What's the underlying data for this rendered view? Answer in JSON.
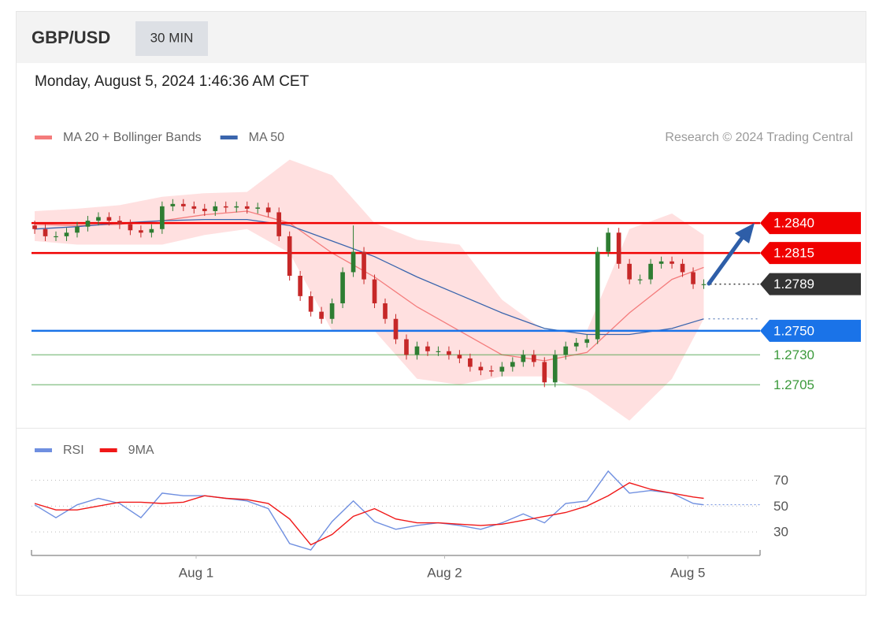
{
  "header": {
    "symbol": "GBP/USD",
    "interval": "30 MIN",
    "timestamp": "Monday, August 5, 2024 1:46:36 AM CET",
    "attribution": "Research © 2024 Trading Central"
  },
  "chart_data": [
    {
      "type": "candlestick",
      "up_color": "#2e7d32",
      "down_color": "#c62828",
      "xlim": [
        -0.3,
        68.3
      ],
      "ylim": [
        1.2671,
        1.2898
      ],
      "x": [
        0,
        1,
        2,
        3,
        4,
        5,
        6,
        7,
        8,
        9,
        10,
        11,
        12,
        13,
        14,
        15,
        16,
        17,
        18,
        19,
        20,
        21,
        22,
        23,
        24,
        25,
        26,
        27,
        28,
        29,
        30,
        31,
        32,
        33,
        34,
        35,
        36,
        37,
        38,
        39,
        40,
        41,
        42,
        43,
        44,
        45,
        46,
        47,
        48,
        49,
        50,
        51,
        52,
        53,
        54,
        55,
        56,
        57,
        58,
        59,
        60,
        61,
        62,
        63
      ],
      "open": [
        1.2838,
        1.2835,
        1.2829,
        1.2829,
        1.2832,
        1.2837,
        1.2842,
        1.2845,
        1.2842,
        1.2839,
        1.2834,
        1.2832,
        1.2835,
        1.2854,
        1.2856,
        1.2854,
        1.2852,
        1.285,
        1.2854,
        1.2853,
        1.2854,
        1.2852,
        1.2853,
        1.2849,
        1.2829,
        1.2796,
        1.2779,
        1.2766,
        1.276,
        1.2773,
        1.2799,
        1.2816,
        1.2793,
        1.2773,
        1.276,
        1.2743,
        1.273,
        1.2737,
        1.2733,
        1.2733,
        1.273,
        1.2727,
        1.272,
        1.2717,
        1.2716,
        1.272,
        1.2724,
        1.273,
        1.2724,
        1.2707,
        1.273,
        1.2737,
        1.274,
        1.2743,
        1.2816,
        1.2832,
        1.2806,
        1.2793,
        1.2793,
        1.2806,
        1.2808,
        1.2806,
        1.2799,
        1.2789
      ],
      "high": [
        1.2842,
        1.2839,
        1.2833,
        1.2836,
        1.2841,
        1.2846,
        1.2849,
        1.2849,
        1.2846,
        1.2843,
        1.2838,
        1.2839,
        1.2858,
        1.286,
        1.286,
        1.2858,
        1.2856,
        1.2858,
        1.2858,
        1.2858,
        1.2858,
        1.2857,
        1.2857,
        1.2853,
        1.2833,
        1.28,
        1.2783,
        1.277,
        1.2777,
        1.2803,
        1.2838,
        1.282,
        1.2797,
        1.2777,
        1.2764,
        1.2747,
        1.2741,
        1.2741,
        1.2737,
        1.2737,
        1.2734,
        1.2731,
        1.2724,
        1.2721,
        1.2724,
        1.2728,
        1.2734,
        1.2734,
        1.2728,
        1.2734,
        1.2741,
        1.2744,
        1.2747,
        1.282,
        1.2836,
        1.2836,
        1.281,
        1.2797,
        1.281,
        1.2812,
        1.2812,
        1.281,
        1.2803,
        1.2793
      ],
      "low": [
        1.2831,
        1.2825,
        1.2825,
        1.2825,
        1.2828,
        1.2833,
        1.2838,
        1.2838,
        1.2835,
        1.283,
        1.2828,
        1.2828,
        1.2831,
        1.285,
        1.285,
        1.2848,
        1.2846,
        1.2846,
        1.2849,
        1.2849,
        1.2848,
        1.2848,
        1.2845,
        1.2825,
        1.2792,
        1.2775,
        1.2762,
        1.2756,
        1.2756,
        1.2769,
        1.2795,
        1.2789,
        1.2769,
        1.2756,
        1.2739,
        1.2726,
        1.2726,
        1.2729,
        1.2729,
        1.2726,
        1.2723,
        1.2716,
        1.2713,
        1.2712,
        1.2712,
        1.2716,
        1.272,
        1.272,
        1.2703,
        1.2703,
        1.2726,
        1.2733,
        1.2736,
        1.2739,
        1.2812,
        1.2802,
        1.2789,
        1.2789,
        1.2789,
        1.2802,
        1.2802,
        1.2795,
        1.2785,
        1.2785
      ],
      "close": [
        1.2835,
        1.2829,
        1.2829,
        1.2832,
        1.2837,
        1.2842,
        1.2845,
        1.2842,
        1.2839,
        1.2834,
        1.2832,
        1.2835,
        1.2854,
        1.2856,
        1.2854,
        1.2852,
        1.285,
        1.2854,
        1.2853,
        1.2854,
        1.2852,
        1.2853,
        1.2849,
        1.2829,
        1.2796,
        1.2779,
        1.2766,
        1.276,
        1.2773,
        1.2799,
        1.2816,
        1.2793,
        1.2773,
        1.276,
        1.2743,
        1.273,
        1.2737,
        1.2733,
        1.2733,
        1.273,
        1.2727,
        1.272,
        1.2717,
        1.2716,
        1.272,
        1.2724,
        1.273,
        1.2724,
        1.2707,
        1.273,
        1.2737,
        1.274,
        1.2743,
        1.2816,
        1.2832,
        1.2806,
        1.2793,
        1.2793,
        1.2806,
        1.2808,
        1.2806,
        1.2799,
        1.2789,
        1.2789
      ],
      "series": [
        {
          "name": "MA 20 + Bollinger Bands",
          "color": "#f47c7c",
          "band_color": "#ffd6d6",
          "x": [
            0,
            4,
            8,
            12,
            16,
            20,
            24,
            28,
            32,
            36,
            40,
            44,
            48,
            52,
            56,
            60,
            63
          ],
          "values": [
            1.2839,
            1.2838,
            1.2839,
            1.2842,
            1.2847,
            1.285,
            1.284,
            1.2815,
            1.2795,
            1.277,
            1.275,
            1.273,
            1.2725,
            1.2732,
            1.2765,
            1.2793,
            1.2803
          ],
          "upper": [
            1.285,
            1.2852,
            1.2855,
            1.2862,
            1.2865,
            1.2866,
            1.2893,
            1.288,
            1.284,
            1.2826,
            1.2822,
            1.2776,
            1.275,
            1.275,
            1.2835,
            1.2848,
            1.283
          ],
          "lower": [
            1.2825,
            1.2822,
            1.2822,
            1.2822,
            1.283,
            1.2835,
            1.2815,
            1.275,
            1.275,
            1.271,
            1.2705,
            1.2712,
            1.2712,
            1.27,
            1.2675,
            1.271,
            1.276
          ]
        },
        {
          "name": "MA 50",
          "color": "#3a65ad",
          "x": [
            0,
            4,
            8,
            12,
            16,
            20,
            24,
            28,
            32,
            36,
            40,
            44,
            48,
            52,
            56,
            60,
            63
          ],
          "values": [
            1.2835,
            1.2837,
            1.284,
            1.2842,
            1.2843,
            1.2843,
            1.2838,
            1.2825,
            1.2812,
            1.2795,
            1.278,
            1.2765,
            1.2752,
            1.2747,
            1.2747,
            1.2752,
            1.276
          ]
        }
      ],
      "levels": [
        {
          "value": 1.284,
          "label": "1.2840",
          "color": "#f00000",
          "tag": true,
          "style": "solid"
        },
        {
          "value": 1.2815,
          "label": "1.2815",
          "color": "#f00000",
          "tag": true,
          "style": "solid"
        },
        {
          "value": 1.2789,
          "label": "1.2789",
          "color": "#333333",
          "tag": true,
          "style": "dotted"
        },
        {
          "value": 1.275,
          "label": "1.2750",
          "color": "#1a73e8",
          "tag": true,
          "style": "solid"
        },
        {
          "value": 1.273,
          "label": "1.2730",
          "color": "#3c9a3c",
          "tag": false,
          "style": "solid"
        },
        {
          "value": 1.2705,
          "label": "1.2705",
          "color": "#3c9a3c",
          "tag": false,
          "style": "solid"
        }
      ]
    },
    {
      "type": "line",
      "xlim": [
        -0.3,
        68.3
      ],
      "ylim": [
        13,
        88
      ],
      "yticks": [
        30,
        50,
        70
      ],
      "xticks": [
        {
          "value": 15.2,
          "label": "Aug 1"
        },
        {
          "value": 38.6,
          "label": "Aug 2"
        },
        {
          "value": 61.5,
          "label": "Aug 5"
        }
      ],
      "series": [
        {
          "name": "RSI",
          "color": "#6f8fe0",
          "x": [
            0,
            2,
            4,
            6,
            8,
            10,
            12,
            14,
            16,
            18,
            20,
            22,
            24,
            26,
            28,
            30,
            32,
            34,
            36,
            38,
            40,
            42,
            44,
            46,
            48,
            50,
            52,
            54,
            56,
            58,
            60,
            62,
            63
          ],
          "values": [
            51,
            41,
            51,
            56,
            52,
            41,
            60,
            58,
            58,
            56,
            54,
            48,
            21,
            16,
            38,
            54,
            38,
            32,
            35,
            37,
            35,
            32,
            37,
            44,
            37,
            52,
            54,
            77,
            60,
            62,
            60,
            52,
            51
          ]
        },
        {
          "name": "9MA",
          "color": "#f01818",
          "x": [
            0,
            2,
            4,
            6,
            8,
            10,
            12,
            14,
            16,
            18,
            20,
            22,
            24,
            26,
            28,
            30,
            32,
            34,
            36,
            38,
            40,
            42,
            44,
            46,
            48,
            50,
            52,
            54,
            56,
            58,
            60,
            62,
            63
          ],
          "values": [
            52,
            47,
            47,
            50,
            53,
            53,
            52,
            53,
            58,
            56,
            55,
            52,
            40,
            20,
            28,
            42,
            48,
            40,
            37,
            37,
            36,
            35,
            36,
            39,
            42,
            45,
            50,
            58,
            68,
            63,
            60,
            57,
            56
          ]
        }
      ]
    }
  ]
}
